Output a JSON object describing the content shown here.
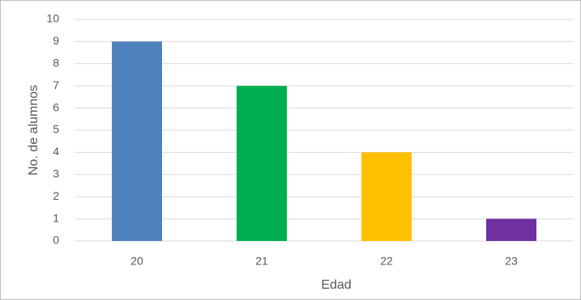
{
  "chart_data": {
    "type": "bar",
    "x_label": "Edad",
    "y_label": "No. de alumnos",
    "categories": [
      "20",
      "21",
      "22",
      "23"
    ],
    "values": [
      9,
      7,
      4,
      1
    ],
    "colors": [
      "#4f81bd",
      "#00b050",
      "#ffc000",
      "#7030a0"
    ],
    "ylim": [
      0,
      10
    ],
    "yticks": [
      0,
      1,
      2,
      3,
      4,
      5,
      6,
      7,
      8,
      9,
      10
    ],
    "grid": true
  }
}
